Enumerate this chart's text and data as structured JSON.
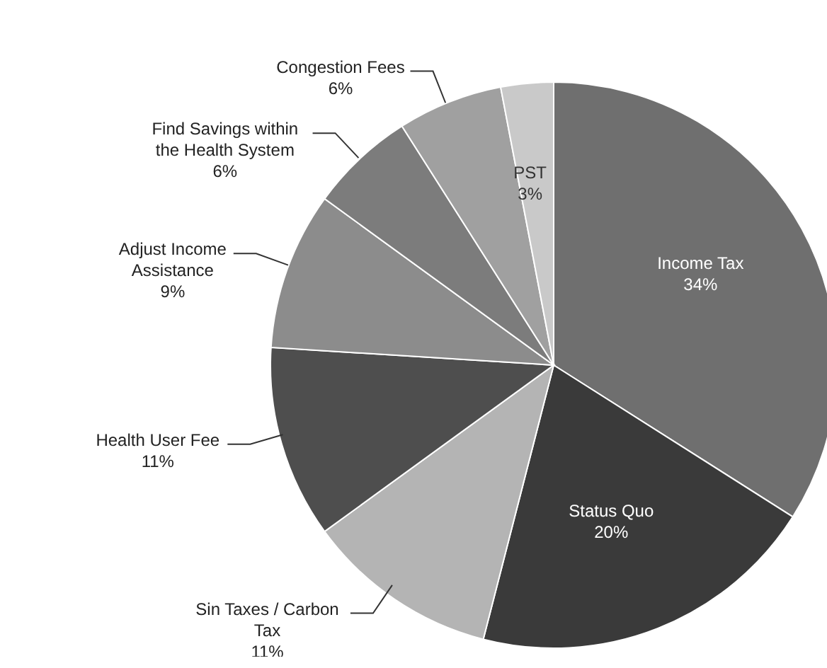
{
  "chart_data": {
    "type": "pie",
    "categories": [
      "Income Tax",
      "Status Quo",
      "Sin Taxes / Carbon Tax",
      "Health User Fee",
      "Adjust Income Assistance",
      "Find Savings within the Health System",
      "Congestion Fees",
      "PST"
    ],
    "values": [
      34,
      20,
      11,
      11,
      9,
      6,
      6,
      3
    ],
    "value_labels": [
      "34%",
      "20%",
      "11%",
      "11%",
      "9%",
      "6%",
      "6%",
      "3%"
    ],
    "colors": [
      "#6f6f6f",
      "#3a3a3a",
      "#b4b4b4",
      "#4e4e4e",
      "#8c8c8c",
      "#7c7c7c",
      "#a0a0a0",
      "#c9c9c9"
    ],
    "legend": false
  }
}
